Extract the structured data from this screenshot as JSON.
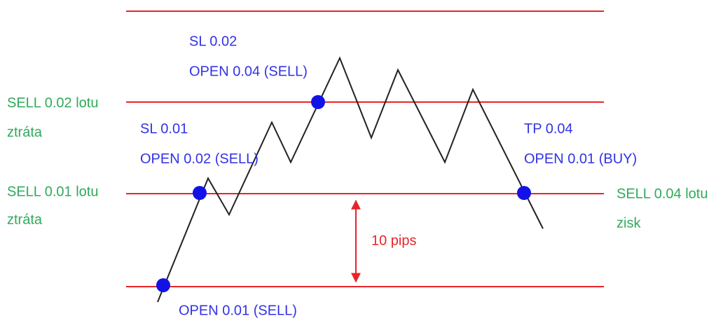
{
  "annotations": [
    {
      "lines": [
        "SL 0.02",
        "OPEN 0.04 (SELL)"
      ]
    },
    {
      "lines": [
        "SELL 0.02 lotu",
        "ztráta"
      ]
    },
    {
      "lines": [
        "SL 0.01",
        "OPEN 0.02 (SELL)"
      ]
    },
    {
      "lines": [
        "TP 0.04",
        "OPEN 0.01 (BUY)"
      ]
    },
    {
      "lines": [
        "SELL 0.01 lotu",
        "ztráta"
      ]
    },
    {
      "lines": [
        "SELL 0.04 lotu",
        "zisk"
      ]
    },
    {
      "lines": [
        "10 pips"
      ]
    },
    {
      "lines": [
        "OPEN 0.01 (SELL)"
      ]
    }
  ]
}
